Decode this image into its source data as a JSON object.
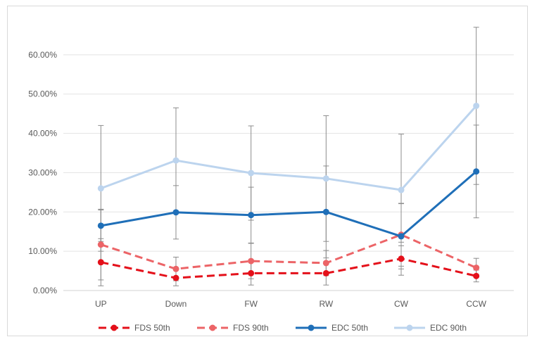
{
  "chart_data": {
    "type": "line",
    "title": "",
    "xlabel": "",
    "ylabel": "",
    "categories": [
      "UP",
      "Down",
      "FW",
      "RW",
      "CW",
      "CCW"
    ],
    "ylim": [
      0,
      0.7
    ],
    "yticks": [
      0,
      0.1,
      0.2,
      0.3,
      0.4,
      0.5,
      0.6
    ],
    "ytick_labels": [
      "0.00%",
      "10.00%",
      "20.00%",
      "30.00%",
      "40.00%",
      "50.00%",
      "60.00%"
    ],
    "grid": "horizontal",
    "legend_position": "bottom",
    "series": [
      {
        "name": "FDS 50th",
        "color": "#e4101a",
        "dash": "dashed",
        "values": [
          0.072,
          0.032,
          0.044,
          0.044,
          0.081,
          0.037
        ],
        "error": [
          0.06,
          0.02,
          0.03,
          0.03,
          0.042,
          0.015
        ]
      },
      {
        "name": "FDS 90th",
        "color": "#ec6467",
        "dash": "dashed",
        "values": [
          0.117,
          0.055,
          0.075,
          0.07,
          0.142,
          0.058
        ],
        "error": [
          0.09,
          0.03,
          0.045,
          0.032,
          0.08,
          0.024
        ]
      },
      {
        "name": "EDC 50th",
        "color": "#1f6fb8",
        "dash": "solid",
        "values": [
          0.165,
          0.199,
          0.192,
          0.2,
          0.138,
          0.303
        ],
        "error": [
          0.04,
          0.068,
          0.071,
          0.117,
          0.083,
          0.118
        ]
      },
      {
        "name": "EDC 90th",
        "color": "#bcd4ee",
        "dash": "solid",
        "values": [
          0.26,
          0.331,
          0.299,
          0.285,
          0.256,
          0.47
        ],
        "error": [
          0.16,
          0.134,
          0.12,
          0.16,
          0.142,
          0.2
        ]
      }
    ]
  }
}
